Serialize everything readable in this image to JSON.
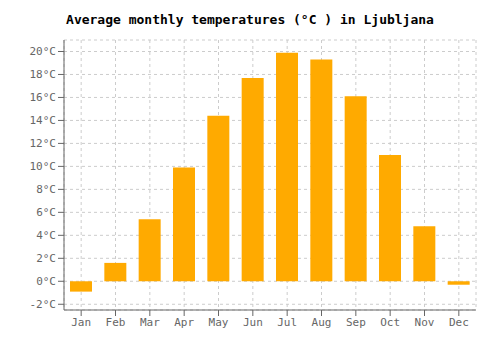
{
  "chart_data": {
    "type": "bar",
    "title": "Average monthly temperatures (°C ) in Ljubljana",
    "categories": [
      "Jan",
      "Feb",
      "Mar",
      "Apr",
      "May",
      "Jun",
      "Jul",
      "Aug",
      "Sep",
      "Oct",
      "Nov",
      "Dec"
    ],
    "values": [
      -0.9,
      1.6,
      5.4,
      9.9,
      14.4,
      17.7,
      19.9,
      19.3,
      16.1,
      11.0,
      4.8,
      -0.3
    ],
    "color": "#FFAA00",
    "ylim": [
      -2.5,
      21.0
    ],
    "yticks": [
      {
        "value": -2,
        "label": "-2°C"
      },
      {
        "value": 0,
        "label": "0°C"
      },
      {
        "value": 2,
        "label": "2°C"
      },
      {
        "value": 4,
        "label": "4°C"
      },
      {
        "value": 6,
        "label": "6°C"
      },
      {
        "value": 8,
        "label": "8°C"
      },
      {
        "value": 10,
        "label": "10°C"
      },
      {
        "value": 12,
        "label": "12°C"
      },
      {
        "value": 14,
        "label": "14°C"
      },
      {
        "value": 16,
        "label": "16°C"
      },
      {
        "value": 18,
        "label": "18°C"
      },
      {
        "value": 20,
        "label": "20°C"
      }
    ],
    "grid": true
  }
}
